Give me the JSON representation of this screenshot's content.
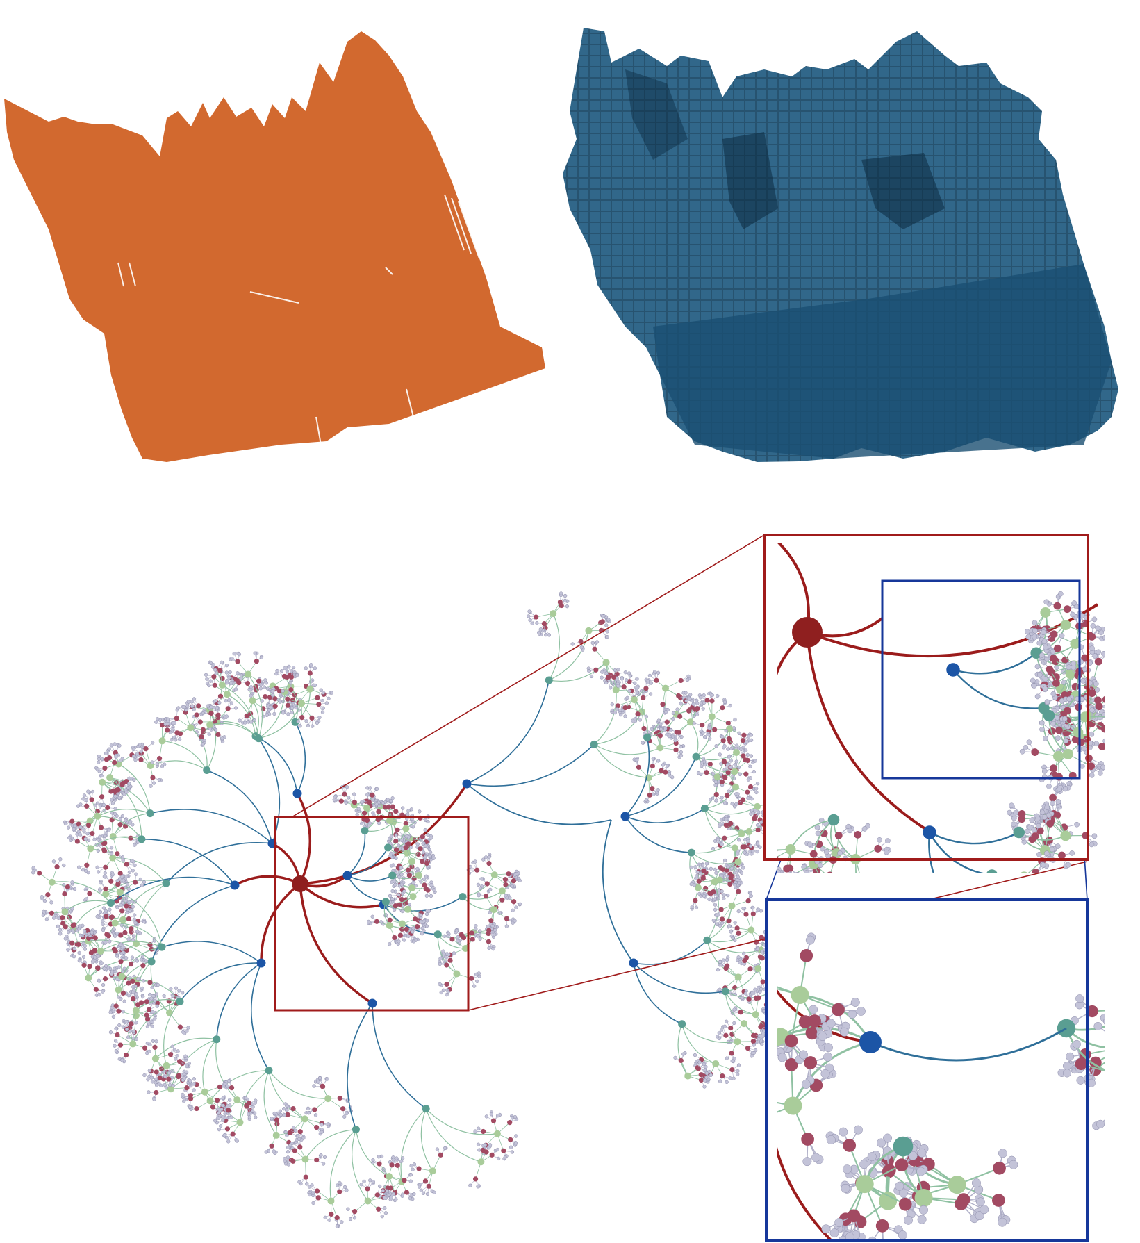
{
  "figure": {
    "panels": [
      {
        "id": "point-cloud",
        "kind": "rendering",
        "color": "#d2692f"
      },
      {
        "id": "voxel-grid",
        "kind": "rendering",
        "color": "#1f5a80"
      },
      {
        "id": "octree-graph",
        "kind": "radial-tree",
        "level_colors": [
          "#8f1f1f",
          "#1c55a6",
          "#5a9e92",
          "#a9cc9a",
          "#a24a62",
          "#c3c3d8"
        ],
        "edge_colors": {
          "root": "#9b1c1c",
          "level1": "#2f6f99",
          "level2": "#8fc1a2"
        }
      },
      {
        "id": "zoom-inset-level1",
        "kind": "inset",
        "frame_color": "#a01b1b"
      },
      {
        "id": "zoom-inset-level2",
        "kind": "inset",
        "frame_color": "#16379a"
      }
    ]
  }
}
